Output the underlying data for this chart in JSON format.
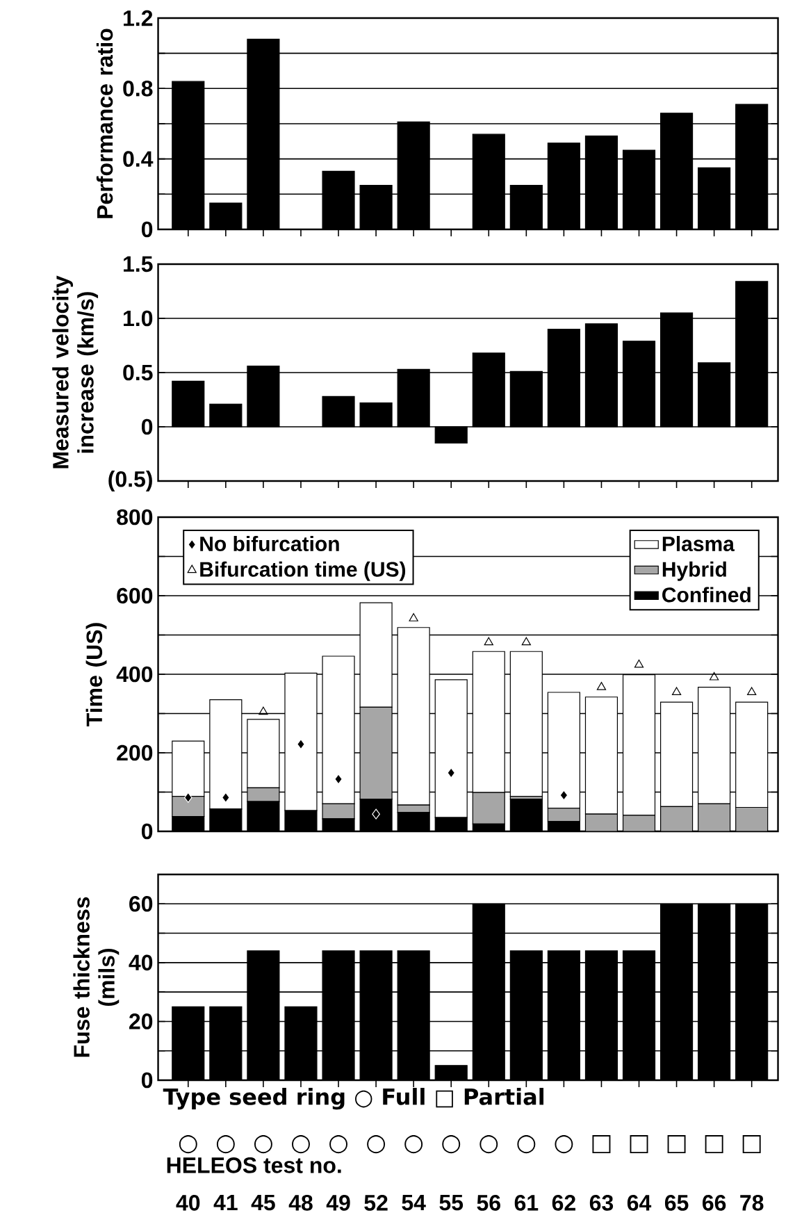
{
  "chart_data": [
    {
      "type": "bar",
      "ylabel": "Performance ratio",
      "categories": [
        "40",
        "41",
        "45",
        "48",
        "49",
        "52",
        "54",
        "55",
        "56",
        "61",
        "62",
        "63",
        "64",
        "65",
        "66",
        "78"
      ],
      "color": "#000000",
      "values": [
        0.84,
        0.15,
        1.08,
        null,
        0.33,
        0.25,
        0.61,
        null,
        0.54,
        0.25,
        0.49,
        0.53,
        0.45,
        0.66,
        0.35,
        0.71
      ],
      "ylim": [
        0,
        1.2
      ],
      "yticks": [
        0,
        {
          "value": 0.2,
          "label": null
        },
        0.4,
        {
          "value": 0.6,
          "label": null
        },
        0.8,
        {
          "value": 1.0,
          "label": null
        },
        1.2
      ],
      "grid": "y",
      "tick_labels": "y"
    },
    {
      "type": "bar",
      "ylabel": "Measured velocity increase (km/s)",
      "categories": [
        "40",
        "41",
        "45",
        "48",
        "49",
        "52",
        "54",
        "55",
        "56",
        "61",
        "62",
        "63",
        "64",
        "65",
        "66",
        "78"
      ],
      "color": "#000000",
      "values": [
        0.42,
        0.21,
        0.56,
        null,
        0.28,
        0.22,
        0.53,
        -0.15,
        0.68,
        0.51,
        0.9,
        0.95,
        0.79,
        1.05,
        0.59,
        1.34
      ],
      "ylim": [
        -0.5,
        1.5
      ],
      "yticks": [
        {
          "value": -0.5,
          "label": "(0.5)"
        },
        0,
        0.5,
        {
          "value": 1.0,
          "label": "1.0"
        },
        1.5
      ],
      "grid": "y",
      "tick_labels": "y"
    },
    {
      "type": "bar",
      "ylabel": "Time (US)",
      "categories": [
        "40",
        "41",
        "45",
        "48",
        "49",
        "52",
        "54",
        "55",
        "56",
        "61",
        "62",
        "63",
        "64",
        "65",
        "66",
        "78"
      ],
      "stacked": true,
      "legend": "top",
      "series": [
        {
          "name": "Confined",
          "color": "#000000",
          "values": [
            38,
            57,
            76,
            53,
            32,
            82,
            48,
            35,
            19,
            82,
            25,
            0,
            0,
            0,
            0,
            0
          ]
        },
        {
          "name": "Hybrid",
          "color": "#a6a6a6",
          "values": [
            51,
            0,
            35,
            0,
            38,
            234,
            19,
            0,
            80,
            7,
            34,
            44,
            41,
            63,
            70,
            61
          ]
        },
        {
          "name": "Plasma",
          "color": "#ffffff",
          "values": [
            141,
            278,
            174,
            350,
            376,
            266,
            452,
            351,
            359,
            369,
            295,
            298,
            358,
            266,
            297,
            268
          ]
        },
        {
          "name": "No bifurcation",
          "type": "scatter",
          "marker": "diamond",
          "color": "#000000",
          "x": [
            "40",
            "41",
            "48",
            "49",
            "52",
            "55",
            "62"
          ],
          "values": [
            86,
            86,
            222,
            133,
            44,
            149,
            92
          ]
        },
        {
          "name": "Bifurcation time (US)",
          "type": "scatter",
          "marker": "triangle",
          "color": "#000000",
          "x": [
            "45",
            "54",
            "56",
            "61",
            "63",
            "64",
            "65",
            "66",
            "78"
          ],
          "values": [
            304,
            542,
            481,
            481,
            367,
            424,
            354,
            392,
            354
          ]
        }
      ],
      "ylim": [
        0,
        800
      ],
      "yticks": [
        0,
        {
          "value": 100,
          "label": null
        },
        200,
        {
          "value": 300,
          "label": null
        },
        400,
        {
          "value": 500,
          "label": null
        },
        600,
        {
          "value": 700,
          "label": null
        },
        800
      ],
      "grid": "y",
      "tick_labels": "y"
    },
    {
      "type": "bar",
      "ylabel": "Fuse thickness (mils)",
      "xlabel": "HELEOS test no.",
      "categories": [
        "40",
        "41",
        "45",
        "48",
        "49",
        "52",
        "54",
        "55",
        "56",
        "61",
        "62",
        "63",
        "64",
        "65",
        "66",
        "78"
      ],
      "color": "#000000",
      "values": [
        25,
        25,
        44,
        25,
        44,
        44,
        44,
        5,
        60,
        44,
        44,
        44,
        44,
        60,
        60,
        60
      ],
      "ylim": [
        0,
        70
      ],
      "yticks": [
        0,
        {
          "value": 10,
          "label": null
        },
        20,
        {
          "value": 30,
          "label": null
        },
        40,
        {
          "value": 50,
          "label": null
        },
        60
      ],
      "grid": "y",
      "annotations": [
        "Type seed ring ○ Full □ Partial",
        "○",
        "○",
        "○",
        "○",
        "○",
        "○",
        "○",
        "○",
        "○",
        "○",
        "○",
        "□",
        "□",
        "□",
        "□",
        "□"
      ]
    }
  ]
}
